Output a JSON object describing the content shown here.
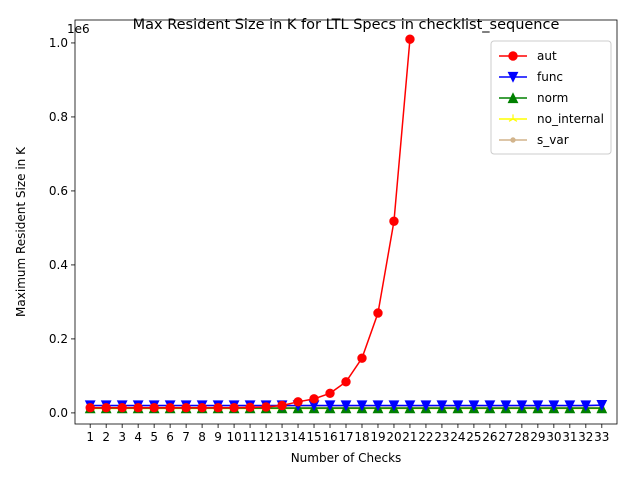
{
  "chart_data": {
    "type": "line",
    "title": "Max Resident Size in K for LTL Specs in checklist_sequence",
    "xlabel": "Number of Checks",
    "ylabel": "Maximum Resident Size in K",
    "y_offset_label": "1e6",
    "x": [
      1,
      2,
      3,
      4,
      5,
      6,
      7,
      8,
      9,
      10,
      11,
      12,
      13,
      14,
      15,
      16,
      17,
      18,
      19,
      20,
      21,
      22,
      23,
      24,
      25,
      26,
      27,
      28,
      29,
      30,
      31,
      32,
      33
    ],
    "x_tick_labels": [
      "1",
      "2",
      "3",
      "4",
      "5",
      "6",
      "7",
      "8",
      "9",
      "10",
      "11",
      "12",
      "13",
      "14",
      "15",
      "16",
      "17",
      "18",
      "19",
      "20",
      "21",
      "22",
      "23",
      "24",
      "25",
      "26",
      "27",
      "28",
      "29",
      "30",
      "31",
      "32",
      "33"
    ],
    "y_ticks": [
      0,
      200000,
      400000,
      600000,
      800000,
      1000000
    ],
    "y_tick_labels": [
      "0.0",
      "0.2",
      "0.4",
      "0.6",
      "0.8",
      "1.0"
    ],
    "ylim": [
      -30000,
      1062000
    ],
    "legend_position": "top-right",
    "grid": false,
    "series": [
      {
        "name": "aut",
        "color": "#ff0000",
        "marker": "circle",
        "x": [
          1,
          2,
          3,
          4,
          5,
          6,
          7,
          8,
          9,
          10,
          11,
          12,
          13,
          14,
          15,
          16,
          17,
          18,
          19,
          20,
          21
        ],
        "values": [
          14000,
          14000,
          14000,
          14000,
          14000,
          14000,
          14000,
          14000,
          14000,
          14000,
          15000,
          16000,
          20000,
          30000,
          38000,
          53000,
          84000,
          148000,
          270000,
          518000,
          1010000
        ]
      },
      {
        "name": "func",
        "color": "#0000ff",
        "marker": "triangle-down",
        "x": [
          1,
          2,
          3,
          4,
          5,
          6,
          7,
          8,
          9,
          10,
          11,
          12,
          13,
          14,
          15,
          16,
          17,
          18,
          19,
          20,
          21,
          22,
          23,
          24,
          25,
          26,
          27,
          28,
          29,
          30,
          31,
          32,
          33
        ],
        "values": [
          20000,
          20000,
          20000,
          20000,
          20000,
          20000,
          20000,
          20000,
          20000,
          20000,
          20000,
          20000,
          20000,
          20000,
          20000,
          20000,
          20000,
          20000,
          20000,
          20000,
          20000,
          20000,
          20000,
          20000,
          20000,
          20000,
          20000,
          20000,
          20000,
          20000,
          20000,
          20000,
          21000
        ]
      },
      {
        "name": "norm",
        "color": "#008000",
        "marker": "triangle-up",
        "x": [
          1,
          2,
          3,
          4,
          5,
          6,
          7,
          8,
          9,
          10,
          11,
          12,
          13,
          14,
          15,
          16,
          17,
          18,
          19,
          20,
          21,
          22,
          23,
          24,
          25,
          26,
          27,
          28,
          29,
          30,
          31,
          32,
          33
        ],
        "values": [
          13000,
          13000,
          13000,
          13000,
          13000,
          13000,
          13000,
          13000,
          13000,
          13000,
          13000,
          13000,
          13000,
          13000,
          13000,
          13000,
          13000,
          13000,
          13000,
          13000,
          13000,
          13000,
          13000,
          13000,
          13000,
          13000,
          13000,
          13000,
          13000,
          13000,
          13000,
          13000,
          13000
        ]
      },
      {
        "name": "no_internal",
        "color": "#ffff00",
        "marker": "tri",
        "x": [
          1,
          2,
          3,
          4,
          5,
          6,
          7,
          8,
          9,
          10,
          11,
          12,
          13,
          14,
          15,
          16,
          17,
          18,
          19,
          20,
          21,
          22,
          23,
          24,
          25,
          26,
          27,
          28,
          29,
          30,
          31,
          32,
          33
        ],
        "values": [
          12000,
          12000,
          12000,
          12000,
          12000,
          12000,
          12000,
          12000,
          12000,
          12000,
          12000,
          12000,
          12000,
          12000,
          12000,
          12000,
          12000,
          12000,
          12000,
          12000,
          12000,
          12000,
          12000,
          12000,
          12000,
          12000,
          12000,
          12000,
          12000,
          12000,
          12000,
          12000,
          12000
        ]
      },
      {
        "name": "s_var",
        "color": "#d2b48c",
        "marker": "point",
        "x": [
          1,
          2,
          3,
          4,
          5,
          6,
          7,
          8,
          9,
          10,
          11,
          12,
          13,
          14,
          15,
          16,
          17,
          18,
          19,
          20,
          21,
          22,
          23,
          24,
          25,
          26,
          27,
          28,
          29,
          30,
          31,
          32,
          33
        ],
        "values": [
          15000,
          15000,
          15000,
          15000,
          15000,
          15000,
          15000,
          15000,
          15000,
          15000,
          15000,
          15000,
          15000,
          15000,
          15000,
          15000,
          15000,
          15000,
          15000,
          15000,
          15000,
          15000,
          15000,
          15000,
          15000,
          15000,
          15000,
          15000,
          15000,
          15000,
          15000,
          15000,
          15000
        ]
      }
    ]
  }
}
